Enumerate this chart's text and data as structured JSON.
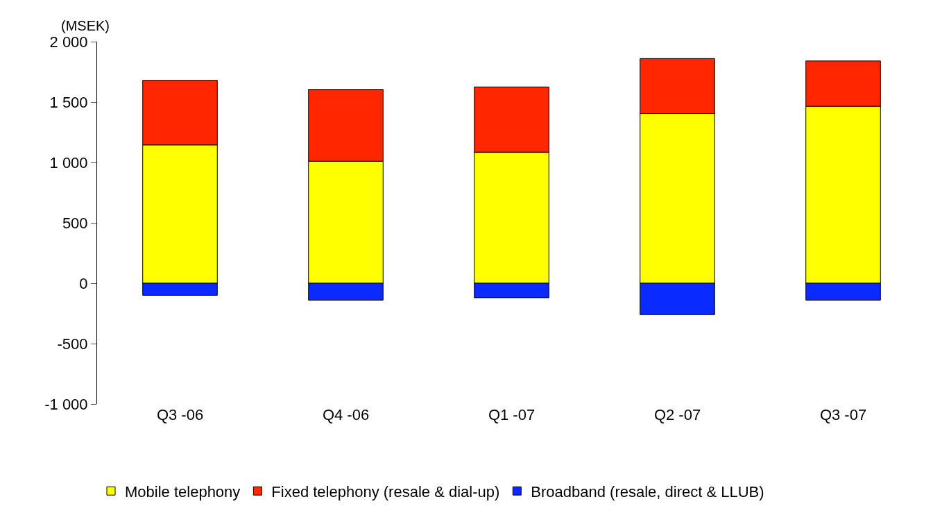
{
  "chart_data": {
    "type": "bar",
    "stacked": true,
    "ylabel": "(MSEK)",
    "categories": [
      "Q3 -06",
      "Q4 -06",
      "Q1 -07",
      "Q2 -07",
      "Q3 -07"
    ],
    "series": [
      {
        "name": "Mobile telephony",
        "color": "#ffff00",
        "values": [
          1145,
          1010,
          1085,
          1405,
          1465
        ]
      },
      {
        "name": "Fixed telephony (resale & dial-up)",
        "color": "#ff2600",
        "values": [
          535,
          595,
          540,
          455,
          375
        ]
      },
      {
        "name": "Broadband (resale, direct & LLUB)",
        "color": "#0a2aff",
        "values": [
          -100,
          -140,
          -120,
          -260,
          -140
        ]
      }
    ],
    "ylim": [
      -1000,
      2000
    ],
    "yticks": [
      {
        "value": -1000,
        "label": "-1 000"
      },
      {
        "value": -500,
        "label": "-500"
      },
      {
        "value": 0,
        "label": "0"
      },
      {
        "value": 500,
        "label": "500"
      },
      {
        "value": 1000,
        "label": "1 000"
      },
      {
        "value": 1500,
        "label": "1 500"
      },
      {
        "value": 2000,
        "label": "2 000"
      }
    ],
    "grid": false,
    "legend": "bottom"
  }
}
